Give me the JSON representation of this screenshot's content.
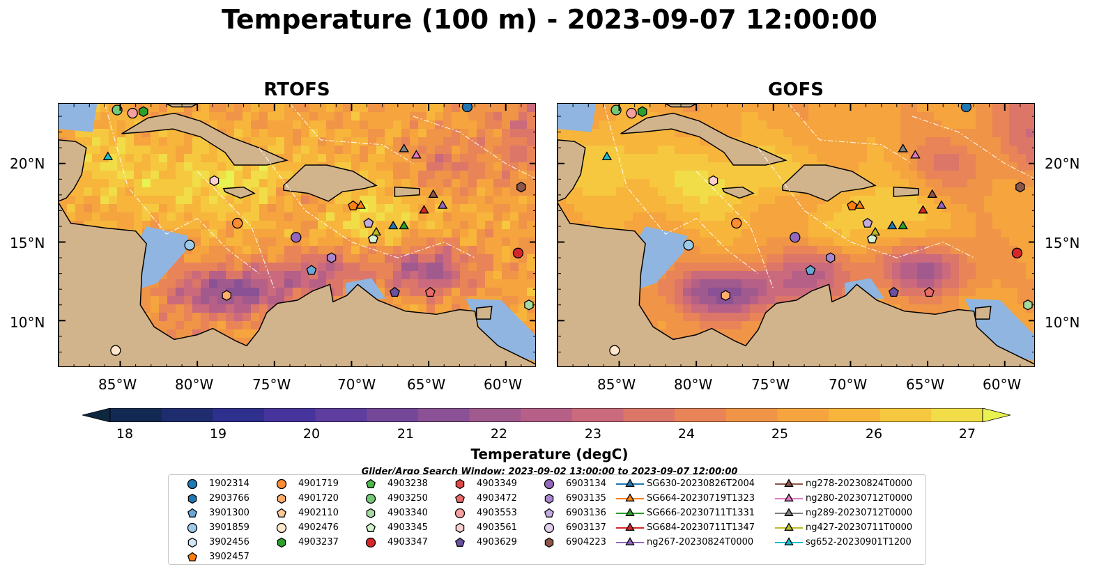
{
  "title": "Temperature (100 m) - 2023-09-07 12:00:00",
  "panels": [
    {
      "title": "RTOFS"
    },
    {
      "title": "GOFS"
    }
  ],
  "lat_ticks": [
    "20°N",
    "15°N",
    "10°N"
  ],
  "lon_ticks": [
    "85°W",
    "80°W",
    "75°W",
    "70°W",
    "65°W",
    "60°W"
  ],
  "colorbar": {
    "label": "Temperature (degC)",
    "ticks": [
      "18",
      "19",
      "20",
      "21",
      "22",
      "23",
      "24",
      "25",
      "26",
      "27"
    ],
    "range": [
      18,
      27
    ],
    "colors": [
      "#0d2740",
      "#122a52",
      "#1f2d6f",
      "#2f2f8e",
      "#46349c",
      "#5d3d9e",
      "#744799",
      "#8a5194",
      "#a05a8e",
      "#b66087",
      "#ca6a7c",
      "#db7669",
      "#e88457",
      "#f09447",
      "#f5a43e",
      "#f7b53c",
      "#f6c83f",
      "#f0dd48",
      "#e8f250"
    ]
  },
  "search_window": "Glider/Argo Search Window: 2023-09-02 13:00:00 to 2023-09-07 12:00:00",
  "legend": [
    {
      "label": "1902314",
      "color": "#1f77b4",
      "marker": "circle"
    },
    {
      "label": "2903766",
      "color": "#1f77b4",
      "marker": "hexagon"
    },
    {
      "label": "3901300",
      "color": "#6aa8d8",
      "marker": "pentagon"
    },
    {
      "label": "3901859",
      "color": "#9ecae9",
      "marker": "circle"
    },
    {
      "label": "3902456",
      "color": "#cfe6f5",
      "marker": "hexagon"
    },
    {
      "label": "3902457",
      "color": "#ff7f0e",
      "marker": "pentagon"
    },
    {
      "label": "4901719",
      "color": "#ff8c33",
      "marker": "circle"
    },
    {
      "label": "4901720",
      "color": "#ffae6b",
      "marker": "hexagon"
    },
    {
      "label": "4902110",
      "color": "#ffc899",
      "marker": "pentagon"
    },
    {
      "label": "4902476",
      "color": "#ffe6cc",
      "marker": "circle"
    },
    {
      "label": "4903237",
      "color": "#2ca02c",
      "marker": "hexagon"
    },
    {
      "label": "4903238",
      "color": "#4cb84c",
      "marker": "pentagon"
    },
    {
      "label": "4903250",
      "color": "#74c976",
      "marker": "circle"
    },
    {
      "label": "4903340",
      "color": "#a6dba0",
      "marker": "hexagon"
    },
    {
      "label": "4903345",
      "color": "#d4f0d0",
      "marker": "pentagon"
    },
    {
      "label": "4903347",
      "color": "#d62728",
      "marker": "circle"
    },
    {
      "label": "4903349",
      "color": "#e04848",
      "marker": "hexagon"
    },
    {
      "label": "4903472",
      "color": "#ec6a6a",
      "marker": "pentagon"
    },
    {
      "label": "4903553",
      "color": "#f4a0a0",
      "marker": "circle"
    },
    {
      "label": "4903561",
      "color": "#fbd0d0",
      "marker": "hexagon"
    },
    {
      "label": "4903629",
      "color": "#6a51a3",
      "marker": "pentagon"
    },
    {
      "label": "6903134",
      "color": "#9467bd",
      "marker": "circle"
    },
    {
      "label": "6903135",
      "color": "#a987cc",
      "marker": "hexagon"
    },
    {
      "label": "6903136",
      "color": "#c4abde",
      "marker": "pentagon"
    },
    {
      "label": "6903137",
      "color": "#e0d0ee",
      "marker": "circle"
    },
    {
      "label": "6904223",
      "color": "#8c564b",
      "marker": "hexagon"
    },
    {
      "label": "SG630-20230826T2004",
      "color": "#1f77b4",
      "marker": "triangle"
    },
    {
      "label": "SG664-20230719T1323",
      "color": "#ff7f0e",
      "marker": "triangle"
    },
    {
      "label": "SG666-20230711T1331",
      "color": "#2ca02c",
      "marker": "triangle"
    },
    {
      "label": "SG684-20230711T1347",
      "color": "#d62728",
      "marker": "triangle"
    },
    {
      "label": "ng267-20230824T0000",
      "color": "#9467bd",
      "marker": "triangle"
    },
    {
      "label": "ng278-20230824T0000",
      "color": "#8c564b",
      "marker": "triangle"
    },
    {
      "label": "ng280-20230712T0000",
      "color": "#e377c2",
      "marker": "triangle"
    },
    {
      "label": "ng289-20230712T0000",
      "color": "#7f7f7f",
      "marker": "triangle"
    },
    {
      "label": "ng427-20230711T0000",
      "color": "#bcbd22",
      "marker": "triangle"
    },
    {
      "label": "sg652-20230901T1200",
      "color": "#17becf",
      "marker": "triangle"
    }
  ],
  "platforms": [
    {
      "id": "1902314",
      "lon": -62.5,
      "lat": 23.6
    },
    {
      "id": "3901859",
      "lon": -80.5,
      "lat": 14.8
    },
    {
      "id": "3901300",
      "lon": -72.6,
      "lat": 13.2
    },
    {
      "id": "3902457",
      "lon": -69.9,
      "lat": 17.3
    },
    {
      "id": "4901719",
      "lon": -77.4,
      "lat": 16.2
    },
    {
      "id": "4901720",
      "lon": -78.1,
      "lat": 11.6
    },
    {
      "id": "4902476",
      "lon": -85.3,
      "lat": 8.1
    },
    {
      "id": "4903237",
      "lon": -83.5,
      "lat": 23.3
    },
    {
      "id": "4903250",
      "lon": -85.2,
      "lat": 23.4
    },
    {
      "id": "4903340",
      "lon": -58.5,
      "lat": 11.0
    },
    {
      "id": "4903345",
      "lon": -68.6,
      "lat": 15.2
    },
    {
      "id": "4903347",
      "lon": -59.2,
      "lat": 14.3
    },
    {
      "id": "4903472",
      "lon": -64.9,
      "lat": 11.8
    },
    {
      "id": "4903553",
      "lon": -84.2,
      "lat": 23.2
    },
    {
      "id": "4903561",
      "lon": -78.9,
      "lat": 18.9
    },
    {
      "id": "4903629",
      "lon": -67.2,
      "lat": 11.8
    },
    {
      "id": "6903134",
      "lon": -73.6,
      "lat": 15.3
    },
    {
      "id": "6903135",
      "lon": -71.3,
      "lat": 14.0
    },
    {
      "id": "6903136",
      "lon": -68.9,
      "lat": 16.2
    },
    {
      "id": "6904223",
      "lon": -59.0,
      "lat": 18.5
    },
    {
      "id": "SG630-20230826T2004",
      "lon": -67.3,
      "lat": 16.0
    },
    {
      "id": "SG664-20230719T1323",
      "lon": -69.4,
      "lat": 17.3
    },
    {
      "id": "SG666-20230711T1331",
      "lon": -66.6,
      "lat": 16.0
    },
    {
      "id": "SG684-20230711T1347",
      "lon": -65.3,
      "lat": 17.0
    },
    {
      "id": "ng267-20230824T0000",
      "lon": -64.1,
      "lat": 17.3
    },
    {
      "id": "ng278-20230824T0000",
      "lon": -64.7,
      "lat": 18.0
    },
    {
      "id": "ng280-20230712T0000",
      "lon": -65.8,
      "lat": 20.5
    },
    {
      "id": "ng289-20230712T0000",
      "lon": -66.6,
      "lat": 20.9
    },
    {
      "id": "ng427-20230711T0000",
      "lon": -68.4,
      "lat": 15.6
    },
    {
      "id": "sg652-20230901T1200",
      "lon": -85.8,
      "lat": 20.4
    }
  ]
}
